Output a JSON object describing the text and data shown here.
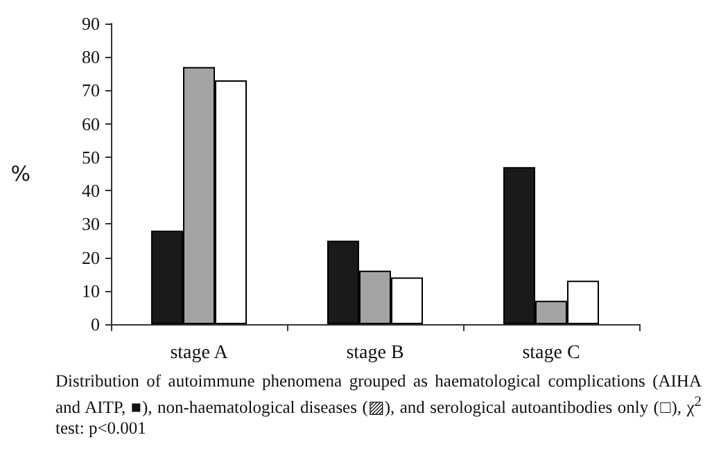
{
  "chart_data": {
    "type": "bar",
    "ylabel": "%",
    "categories": [
      "stage A",
      "stage B",
      "stage C"
    ],
    "series": [
      {
        "color": "#1a1a1a",
        "values": [
          28,
          25,
          47
        ]
      },
      {
        "color": "#a3a3a3",
        "values": [
          77,
          16,
          7
        ]
      },
      {
        "color": "#ffffff",
        "values": [
          73,
          14,
          13
        ]
      }
    ],
    "ylim": [
      0,
      90
    ],
    "yticks": [
      0,
      10,
      20,
      30,
      40,
      50,
      60,
      70,
      80,
      90
    ],
    "grid": false,
    "annotations": [
      "Distribution of autoimmune phenomena grouped as haematological complications (AIHA and AITP, ■), non-haematological diseases (▨), and serological autoantibodies only (□), χ$^{2}$ test: p<0.001"
    ]
  }
}
